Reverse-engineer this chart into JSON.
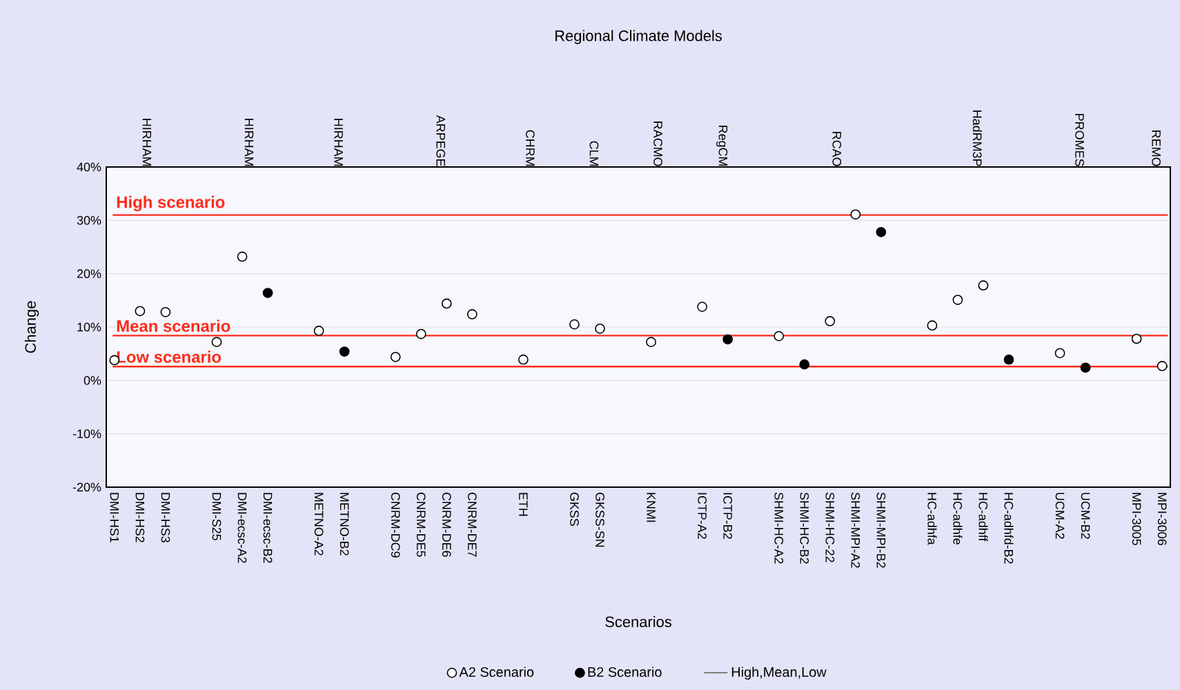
{
  "chart_data": {
    "type": "scatter",
    "title": "Regional Climate Models",
    "xlabel": "Scenarios",
    "ylabel": "Change",
    "categories": [
      "DMI-HS1",
      "DMI-HS2",
      "DMI-HS3",
      null,
      "DMI-S25",
      "DMI-ecsc-A2",
      "DMI-ecsc-B2",
      null,
      "METNO-A2",
      "METNO-B2",
      null,
      "CNRM-DC9",
      "CNRM-DE5",
      "CNRM-DE6",
      "CNRM-DE7",
      null,
      "ETH",
      null,
      "GKSS",
      "GKSS-SN",
      null,
      "KNMI",
      null,
      "ICTP-A2",
      "ICTP-B2",
      null,
      "SHMI-HC-A2",
      "SHMI-HC-B2",
      "SHMI-HC-22",
      "SHMI-MPI-A2",
      "SHMI-MPI-B2",
      null,
      "HC-adhfa",
      "HC-adhfe",
      "HC-adhff",
      "HC-adhfd-B2",
      null,
      "UCM-A2",
      "UCM-B2",
      null,
      "MPI-3005",
      "MPI-3006"
    ],
    "series": [
      {
        "name": "A2 Scenario",
        "color": "#ffffff",
        "values": [
          3.8,
          13.0,
          12.8,
          null,
          7.2,
          23.2,
          null,
          null,
          9.3,
          null,
          null,
          4.4,
          8.7,
          14.4,
          12.4,
          null,
          3.9,
          null,
          10.5,
          9.7,
          null,
          7.2,
          null,
          13.8,
          null,
          null,
          8.3,
          null,
          11.1,
          31.1,
          null,
          null,
          10.3,
          15.1,
          17.8,
          null,
          null,
          5.1,
          null,
          null,
          7.8,
          2.7
        ]
      },
      {
        "name": "B2 Scenario",
        "color": "#000000",
        "values": [
          null,
          null,
          null,
          null,
          null,
          null,
          16.4,
          null,
          null,
          5.4,
          null,
          null,
          null,
          null,
          null,
          null,
          null,
          null,
          null,
          null,
          null,
          null,
          null,
          null,
          7.7,
          null,
          null,
          3.0,
          null,
          null,
          27.8,
          null,
          null,
          null,
          null,
          3.9,
          null,
          null,
          2.4,
          null,
          null,
          null
        ]
      }
    ],
    "marker": "circle",
    "ylim": [
      -20,
      40
    ],
    "yticks": [
      {
        "value": 40,
        "label": "40%"
      },
      {
        "value": 30,
        "label": "30%"
      },
      {
        "value": 20,
        "label": "20%"
      },
      {
        "value": 10,
        "label": "10%"
      },
      {
        "value": 0,
        "label": "0%"
      },
      {
        "value": -10,
        "label": "-10%"
      },
      {
        "value": -20,
        "label": "-20%"
      }
    ],
    "grid": "y",
    "legend": "bottom",
    "ref_lines": [
      {
        "axis": "y",
        "value": 31.0,
        "label": "High scenario",
        "color": "#ff2a1a"
      },
      {
        "axis": "y",
        "value": 8.4,
        "label": "Mean scenario",
        "color": "#ff2a1a"
      },
      {
        "axis": "y",
        "value": 2.6,
        "label": "Low scenario",
        "color": "#ff2a1a"
      }
    ],
    "annotations": [
      "HIRHAM",
      "HIRHAM",
      "HIRHAM",
      "ARPEGE",
      "CHRM",
      "CLM",
      "RACMO",
      "RegCM",
      "RCAO",
      "HadRM3P",
      "PROMES",
      "REMO",
      "High,Mean,Low"
    ]
  }
}
